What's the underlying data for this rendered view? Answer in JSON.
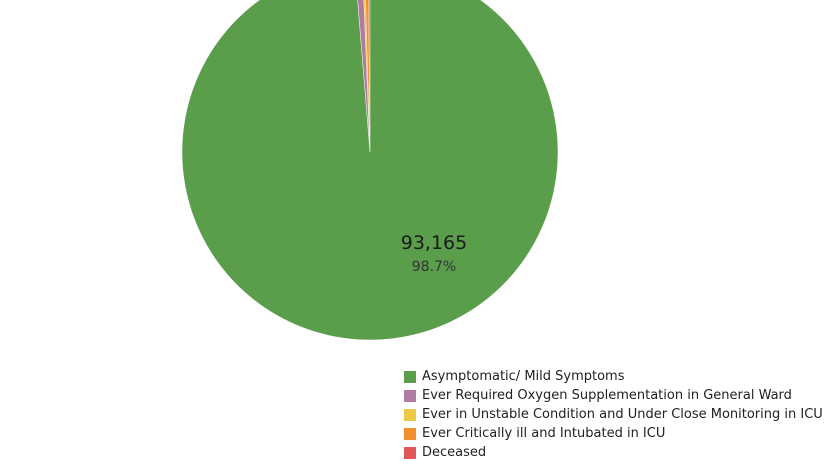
{
  "chart_data": {
    "type": "pie",
    "slices": [
      {
        "name": "Asymptomatic/ Mild Symptoms",
        "percent": 98.7,
        "color": "#5a9e4b"
      },
      {
        "name": "Ever Required Oxygen Supplementation in General Ward",
        "percent": 0.65,
        "color": "#b07aa1"
      },
      {
        "name": "Ever in Unstable Condition and Under Close Monitoring in ICU",
        "percent": 0.2,
        "color": "#edc948"
      },
      {
        "name": "Ever Critically ill and Intubated in ICU",
        "percent": 0.3,
        "color": "#f28e2b"
      },
      {
        "name": "Deceased",
        "percent": 0.15,
        "color": "#e15759"
      }
    ],
    "annotation": {
      "value_label": "93,165",
      "percent_label": "98.7%"
    },
    "legend": {
      "position": "bottom-right",
      "items": [
        "Asymptomatic/ Mild Symptoms",
        "Ever Required Oxygen Supplementation in General Ward",
        "Ever in Unstable Condition and Under Close Monitoring in ICU",
        "Ever Critically ill and Intubated in ICU",
        "Deceased"
      ]
    }
  }
}
